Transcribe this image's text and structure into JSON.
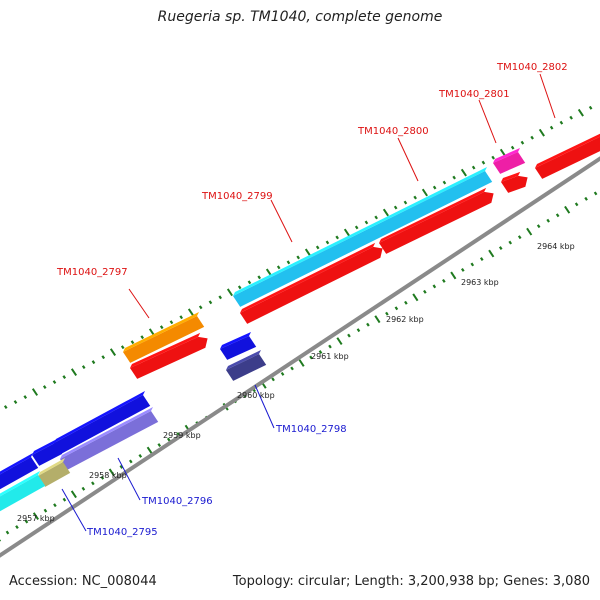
{
  "title": "Ruegeria sp. TM1040, complete genome",
  "footer": {
    "accession": "Accession: NC_008044",
    "summary": "Topology: circular; Length: 3,200,938 bp; Genes: 3,080"
  },
  "scale_labels": [
    "2957 kbp",
    "2958 kbp",
    "2959 kbp",
    "2960 kbp",
    "2961 kbp",
    "2962 kbp",
    "2963 kbp",
    "2964 kbp"
  ],
  "genes": [
    {
      "name": "TM1040_2795",
      "color": "#1a1ad0"
    },
    {
      "name": "TM1040_2796",
      "color": "#1a1ad0"
    },
    {
      "name": "TM1040_2797",
      "color": "#dd1111"
    },
    {
      "name": "TM1040_2798",
      "color": "#1a1ad0"
    },
    {
      "name": "TM1040_2799",
      "color": "#dd1111"
    },
    {
      "name": "TM1040_2800",
      "color": "#dd1111"
    },
    {
      "name": "TM1040_2801",
      "color": "#dd1111"
    },
    {
      "name": "TM1040_2802",
      "color": "#dd1111"
    }
  ],
  "colors": {
    "backbone": "#8a8a8a",
    "tick": "#1f7a1f",
    "forward_cds": "#ee1111",
    "reverse_cds": "#1111dd",
    "reverse_pale": "#7b6fd9",
    "cyan": "#22c0ef",
    "cyan_light": "#22eaea",
    "orange": "#f48a00",
    "magenta": "#ee1fa6",
    "navy": "#3c3d8a",
    "olive": "#b4ae6a"
  }
}
